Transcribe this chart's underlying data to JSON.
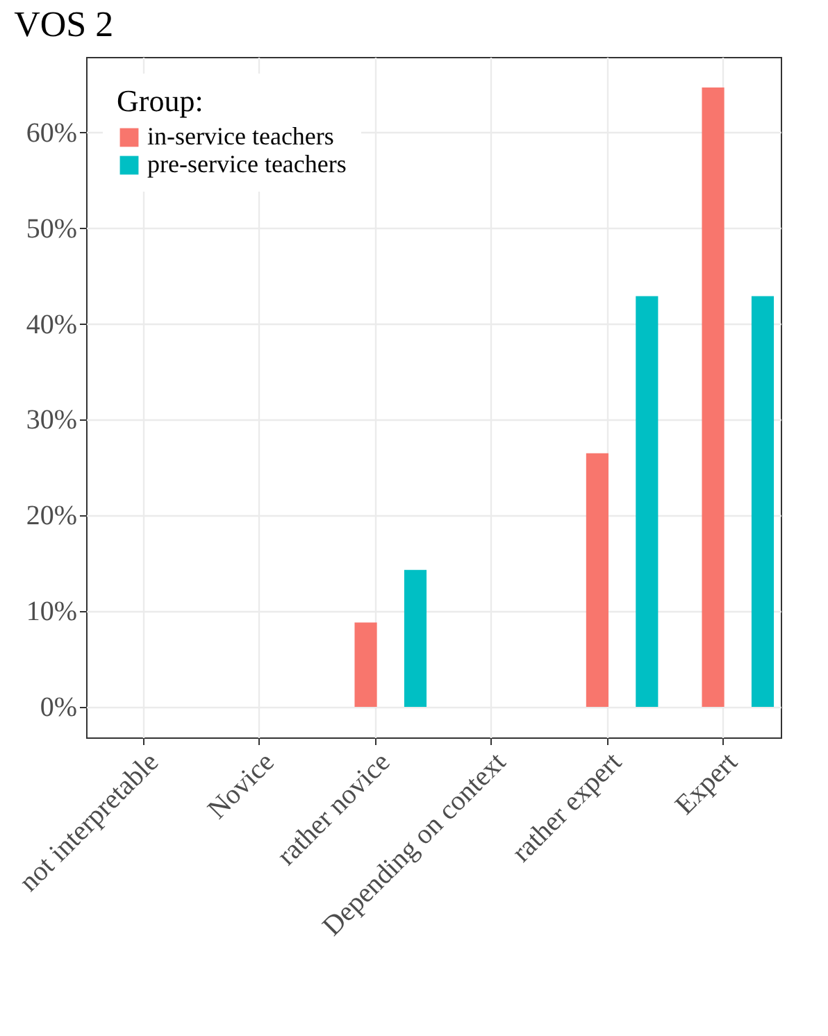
{
  "chart_data": {
    "type": "bar",
    "title": "VOS 2",
    "legend_title": "Group:",
    "categories": [
      "not interpretable",
      "Novice",
      "rather novice",
      "Depending on context",
      "rather expert",
      "Expert"
    ],
    "series": [
      {
        "name": "in-service teachers",
        "color": "#f8766d",
        "values": [
          0,
          0,
          8.8,
          0,
          26.5,
          64.7
        ]
      },
      {
        "name": "pre-service teachers",
        "color": "#00bfc4",
        "values": [
          0,
          0,
          14.3,
          0,
          42.9,
          42.9
        ]
      }
    ],
    "ylim": [
      -3.2,
      67.9
    ],
    "yticks": [
      {
        "value": 0,
        "label": "0%"
      },
      {
        "value": 10,
        "label": "10%"
      },
      {
        "value": 20,
        "label": "20%"
      },
      {
        "value": 30,
        "label": "30%"
      },
      {
        "value": 40,
        "label": "40%"
      },
      {
        "value": 50,
        "label": "50%"
      },
      {
        "value": 60,
        "label": "60%"
      }
    ],
    "grid": true,
    "legend": "top left"
  }
}
